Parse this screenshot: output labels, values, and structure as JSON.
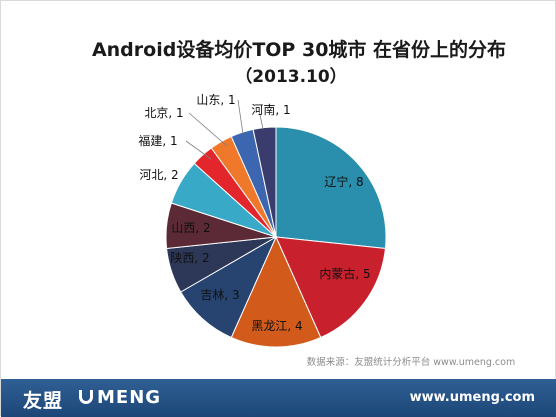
{
  "chart_data": {
    "type": "pie",
    "title": "Android设备均价TOP 30城市 在省份上的分布",
    "subtitle": "（2013.10）",
    "slices": [
      {
        "label": "辽宁",
        "value": 8,
        "color": "#2a8fac"
      },
      {
        "label": "内蒙古",
        "value": 5,
        "color": "#c8202d"
      },
      {
        "label": "黑龙江",
        "value": 4,
        "color": "#d25b1c"
      },
      {
        "label": "吉林",
        "value": 3,
        "color": "#26446f"
      },
      {
        "label": "陕西",
        "value": 2,
        "color": "#2d3858"
      },
      {
        "label": "山西",
        "value": 2,
        "color": "#5b2a36"
      },
      {
        "label": "河北",
        "value": 2,
        "color": "#38a9c6"
      },
      {
        "label": "福建",
        "value": 1,
        "color": "#e2262b"
      },
      {
        "label": "北京",
        "value": 1,
        "color": "#f0782a"
      },
      {
        "label": "山东",
        "value": 1,
        "color": "#3d66b0"
      },
      {
        "label": "河南",
        "value": 1,
        "color": "#3a3c6e"
      }
    ],
    "label_separator": ", ",
    "source": "数据来源：友盟统计分析平台 www.umeng.com"
  },
  "footer": {
    "brand_cn": "友盟",
    "brand_en": "MENG",
    "url": "www.umeng.com"
  }
}
